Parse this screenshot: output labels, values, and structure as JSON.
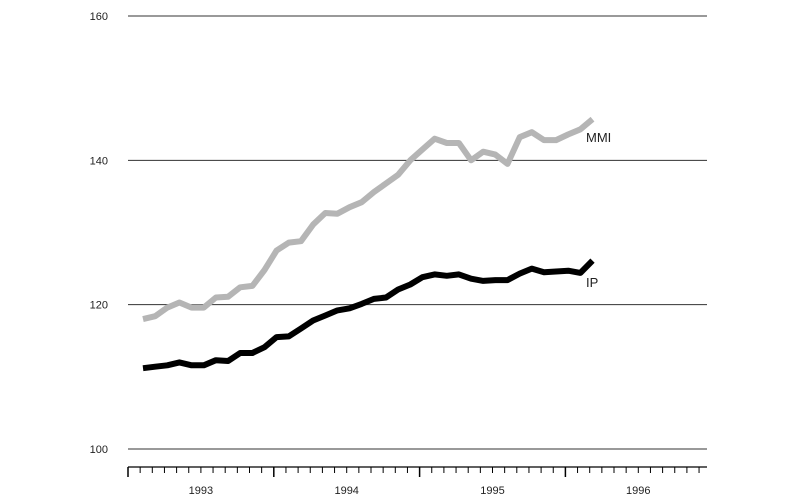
{
  "chart_data": {
    "type": "line",
    "title": "",
    "xlabel": "",
    "ylabel": "",
    "ylim": [
      100,
      160
    ],
    "yticks": [
      100,
      120,
      140,
      160
    ],
    "grid": "horizontal",
    "x_categories": [
      "1993",
      "1994",
      "1995",
      "1996"
    ],
    "series": [
      {
        "name": "MMI",
        "color": "#b5b5b5",
        "start_index": 0,
        "values": [
          118.0,
          118.4,
          119.6,
          120.3,
          119.6,
          119.6,
          121.0,
          121.1,
          122.4,
          122.6,
          124.8,
          127.5,
          128.6,
          128.8,
          131.1,
          132.7,
          132.6,
          133.5,
          134.2,
          135.6,
          136.8,
          138.0,
          140.0,
          141.5,
          143.0,
          142.4,
          142.4,
          140.0,
          141.2,
          140.8,
          139.5,
          143.2,
          143.9,
          142.8,
          142.8,
          143.6,
          144.3,
          145.7
        ]
      },
      {
        "name": "IP",
        "color": "#000000",
        "start_index": 0,
        "values": [
          111.2,
          111.4,
          111.6,
          112.0,
          111.6,
          111.6,
          112.3,
          112.2,
          113.3,
          113.3,
          114.1,
          115.5,
          115.6,
          116.7,
          117.8,
          118.5,
          119.2,
          119.5,
          120.1,
          120.8,
          121.0,
          122.1,
          122.8,
          123.8,
          124.2,
          124.0,
          124.2,
          123.6,
          123.3,
          123.4,
          123.4,
          124.3,
          125.0,
          124.5,
          124.6,
          124.7,
          124.4,
          126.1
        ]
      }
    ]
  }
}
